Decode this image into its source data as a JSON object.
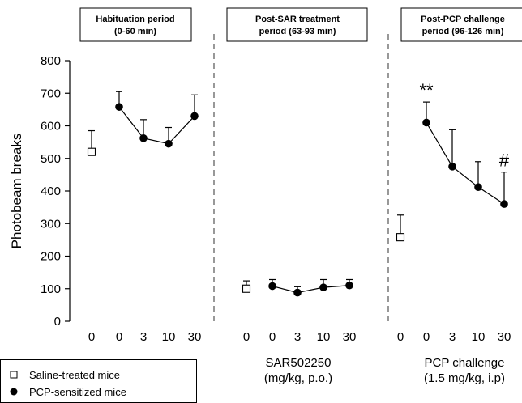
{
  "chart_data": {
    "type": "line",
    "ylabel": "Photobeam breaks",
    "ylim": [
      0,
      800
    ],
    "yticks": [
      0,
      100,
      200,
      300,
      400,
      500,
      600,
      700,
      800
    ],
    "panels": [
      {
        "title_line1": "Habituation period",
        "title_line2": "(0-60 min)",
        "x_ticks": [
          "0",
          "0",
          "3",
          "10",
          "30"
        ],
        "saline": {
          "label": "0",
          "mean": 520,
          "sem": 65
        },
        "pcp": {
          "labels": [
            "0",
            "3",
            "10",
            "30"
          ],
          "mean": [
            658,
            562,
            545,
            630
          ],
          "sem": [
            47,
            57,
            50,
            65
          ]
        },
        "significance": [],
        "footer_line1": "",
        "footer_line2": ""
      },
      {
        "title_line1": "Post-SAR treatment",
        "title_line2": "period (63-93 min)",
        "x_ticks": [
          "0",
          "0",
          "3",
          "10",
          "30"
        ],
        "saline": {
          "label": "0",
          "mean": 100,
          "sem": 24
        },
        "pcp": {
          "labels": [
            "0",
            "3",
            "10",
            "30"
          ],
          "mean": [
            108,
            88,
            104,
            110
          ],
          "sem": [
            20,
            18,
            24,
            18
          ]
        },
        "significance": [],
        "footer_line1": "SAR502250",
        "footer_line2": "(mg/kg, p.o.)"
      },
      {
        "title_line1": "Post-PCP challenge",
        "title_line2": "period (96-126 min)",
        "x_ticks": [
          "0",
          "0",
          "3",
          "10",
          "30"
        ],
        "saline": {
          "label": "0",
          "mean": 258,
          "sem": 68
        },
        "pcp": {
          "labels": [
            "0",
            "3",
            "10",
            "30"
          ],
          "mean": [
            610,
            475,
            412,
            360
          ],
          "sem": [
            63,
            113,
            78,
            98
          ]
        },
        "significance": [
          {
            "point": 0,
            "text": "**"
          },
          {
            "point": 3,
            "text": "#"
          }
        ],
        "footer_line1": "PCP challenge",
        "footer_line2": "(1.5 mg/kg, i.p)"
      }
    ],
    "legend": [
      {
        "marker": "open-square",
        "label": "Saline-treated mice"
      },
      {
        "marker": "filled-circle",
        "label": "PCP-sensitized mice"
      }
    ]
  }
}
